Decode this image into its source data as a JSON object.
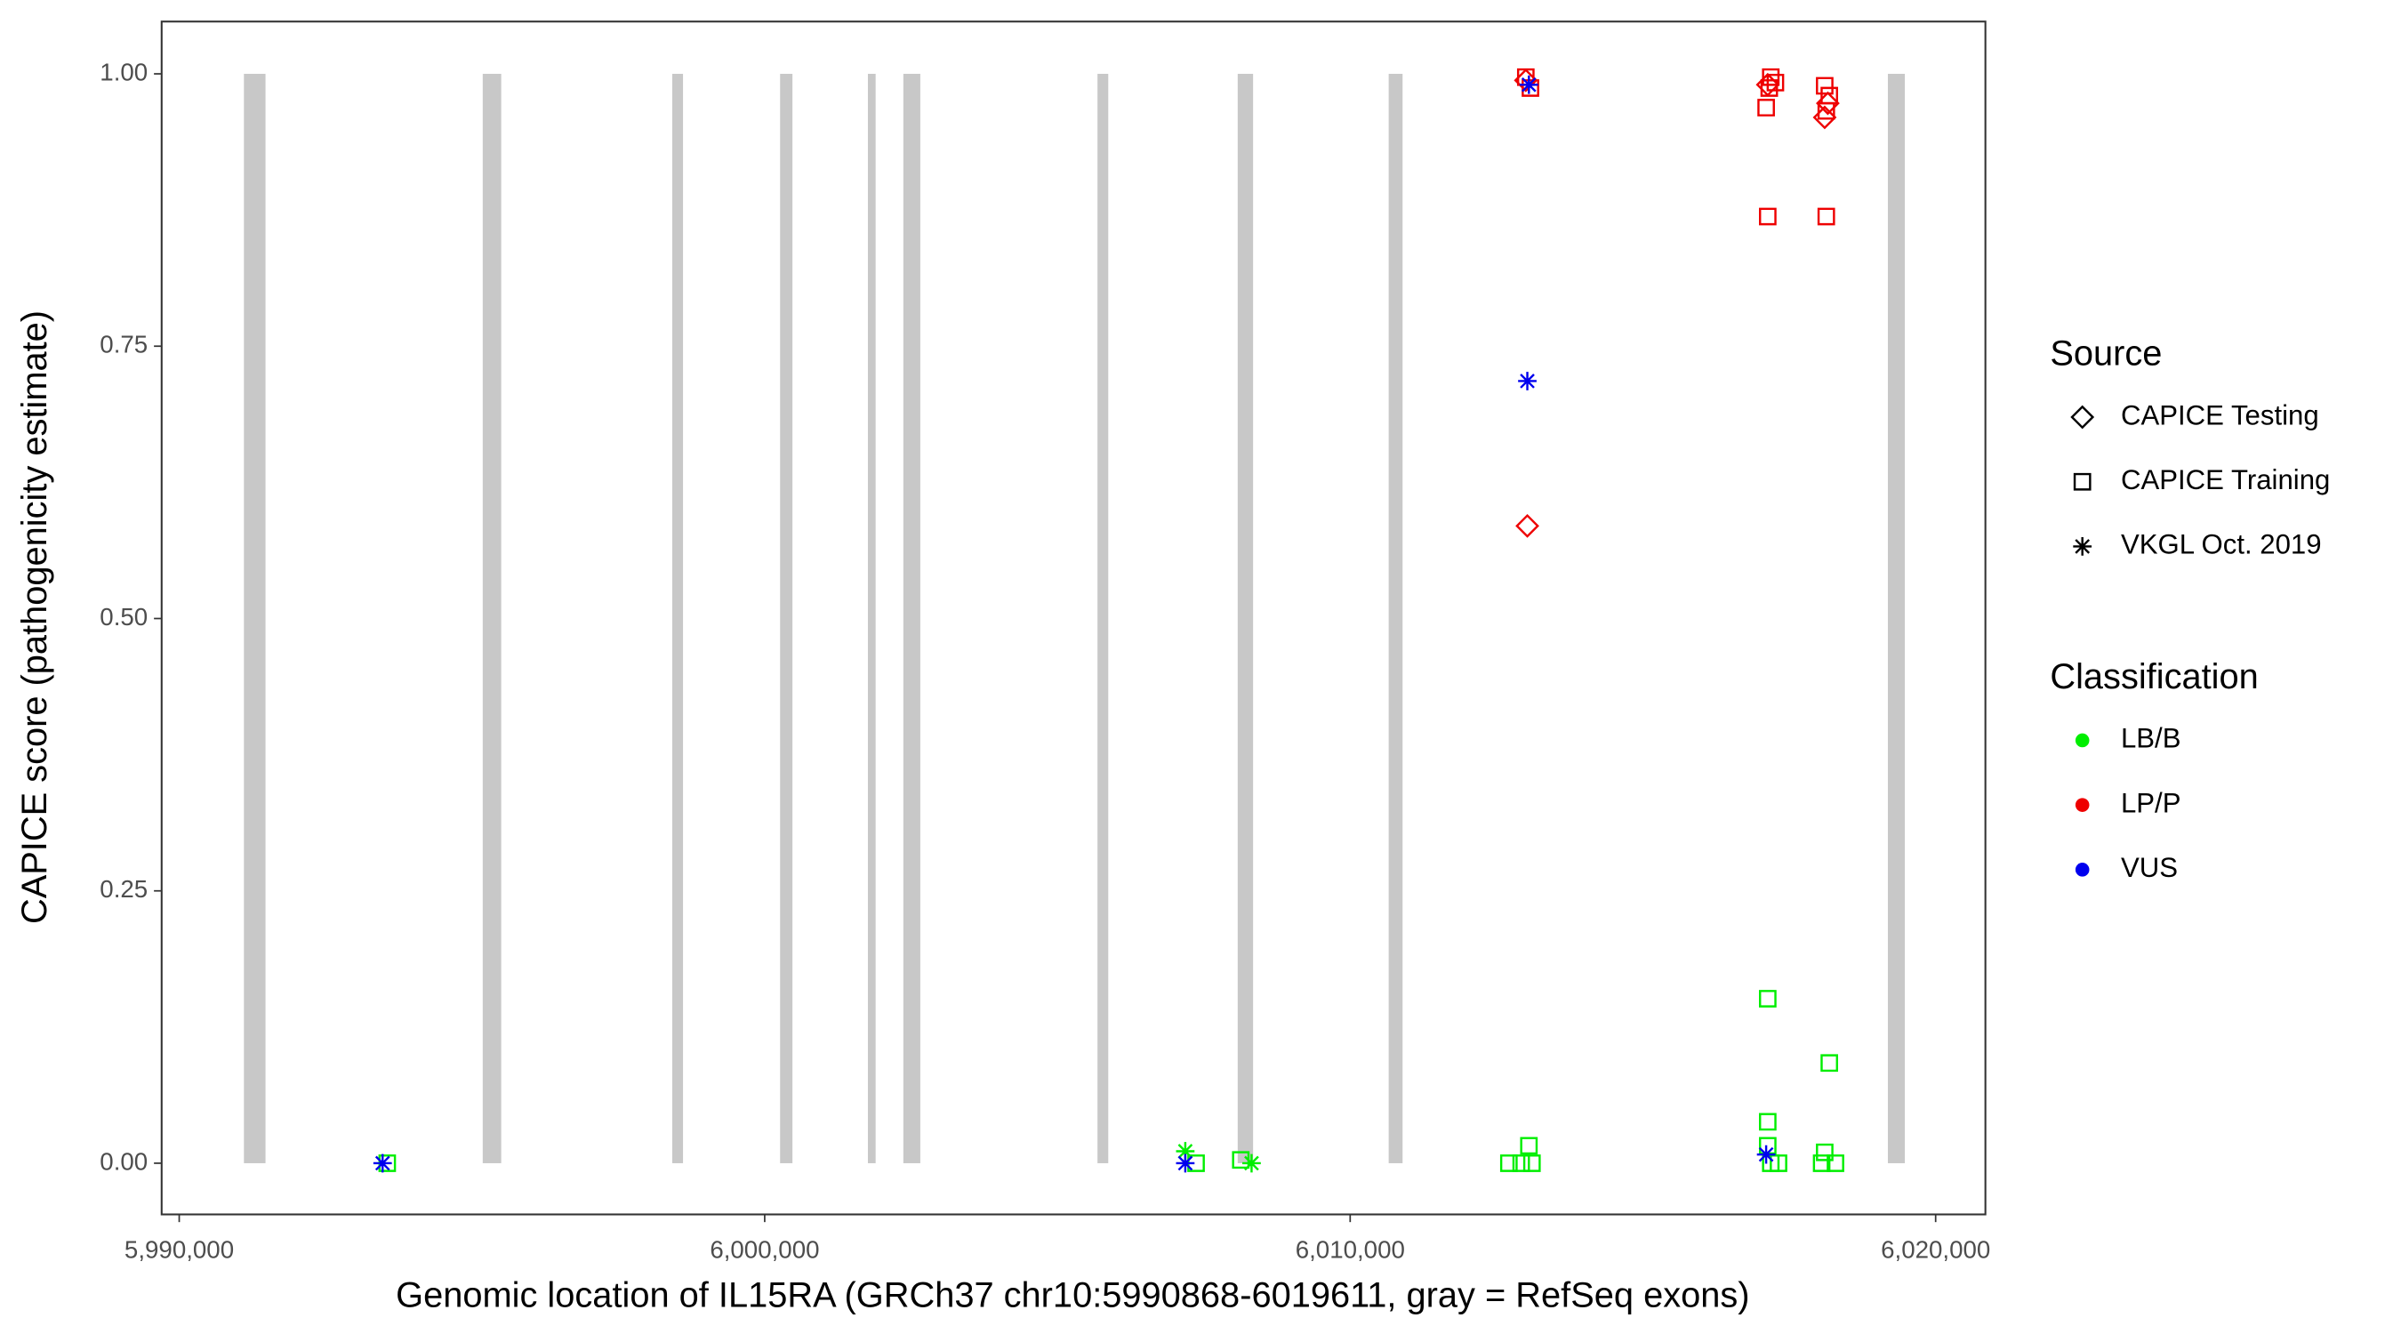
{
  "chart_data": {
    "type": "scatter",
    "x_label": "Genomic location of IL15RA (GRCh37 chr10:5990868-6019611, gray = RefSeq exons)",
    "y_label": "CAPICE score (pathogenicity estimate)",
    "xlim": [
      5989700,
      6020850
    ],
    "ylim": [
      -0.047,
      1.048
    ],
    "xticks": [
      {
        "value": 5990000,
        "label": "5,990,000"
      },
      {
        "value": 6000000,
        "label": "6,000,000"
      },
      {
        "value": 6010000,
        "label": "6,010,000"
      },
      {
        "value": 6020000,
        "label": "6,020,000"
      }
    ],
    "yticks": [
      {
        "value": 0,
        "label": "0.00"
      },
      0.25,
      {
        "value": 0.5,
        "label": "0.50"
      },
      0.75,
      {
        "value": 1,
        "label": "1.00"
      }
    ],
    "exon_color": "#c8c8c8",
    "exons": [
      [
        5991105,
        5991474
      ],
      [
        5995184,
        5995500
      ],
      [
        5998421,
        5998605
      ],
      [
        6000263,
        6000474
      ],
      [
        6001763,
        6001895
      ],
      [
        6002368,
        6002658
      ],
      [
        6005684,
        6005868
      ],
      [
        6008079,
        6008342
      ],
      [
        6010658,
        6010895
      ],
      [
        6019184,
        6019474
      ]
    ],
    "legend": {
      "shape": {
        "title": "Source",
        "entries": [
          {
            "name": "CAPICE Testing",
            "shape": "diamond"
          },
          {
            "name": "CAPICE Training",
            "shape": "square"
          },
          {
            "name": "VKGL Oct. 2019",
            "shape": "asterisk"
          }
        ]
      },
      "color": {
        "title": "Classification",
        "entries": [
          {
            "name": "LB/B",
            "color": "#00ee00"
          },
          {
            "name": "LP/P",
            "color": "#ee0000"
          },
          {
            "name": "VUS",
            "color": "#0000ee"
          }
        ]
      }
    },
    "series": [
      {
        "shape": "square",
        "color": "#00ee00",
        "x": [
          5993553,
          6007368,
          6008132,
          6012711,
          6012921,
          6013053,
          6013105,
          6017132,
          6017132,
          6017132,
          6017184,
          6017316,
          6018105,
          6018184,
          6018289,
          6018053
        ],
        "y": [
          0,
          0,
          0.003,
          0,
          0,
          0.016,
          0,
          0.151,
          0.038,
          0.016,
          0,
          0,
          0.01,
          0.092,
          0,
          0
        ]
      },
      {
        "shape": "asterisk",
        "color": "#00ee00",
        "x": [
          6008316,
          6007184
        ],
        "y": [
          0,
          0.011
        ]
      },
      {
        "shape": "square",
        "color": "#ee0000",
        "x": [
          6013000,
          6013079,
          6017105,
          6017132,
          6017184,
          6017158,
          6017263,
          6018105,
          6018132,
          6018184,
          6018132
        ],
        "y": [
          0.997,
          0.987,
          0.969,
          0.869,
          0.997,
          0.987,
          0.992,
          0.989,
          0.869,
          0.98,
          0.966
        ]
      },
      {
        "shape": "diamond",
        "color": "#ee0000",
        "x": [
          6013026,
          6018105,
          6018158,
          6017132,
          6013000
        ],
        "y": [
          0.585,
          0.96,
          0.973,
          0.99,
          0.994
        ]
      },
      {
        "shape": "asterisk",
        "color": "#0000ee",
        "x": [
          5993474,
          6013053,
          6013026,
          6007184,
          6017105
        ],
        "y": [
          0,
          0.99,
          0.718,
          0,
          0.008
        ]
      }
    ]
  }
}
